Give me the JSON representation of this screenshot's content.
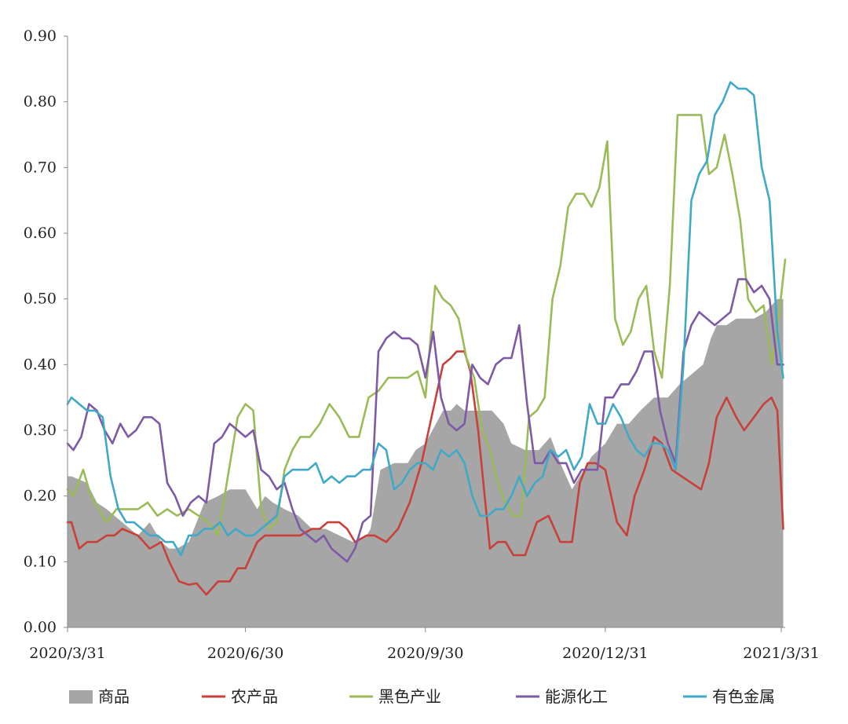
{
  "chart_data": {
    "type": "line",
    "title": "",
    "xlabel": "",
    "ylabel": "",
    "ylim": [
      0,
      0.9
    ],
    "yticks": [
      "0.00",
      "0.10",
      "0.20",
      "0.30",
      "0.40",
      "0.50",
      "0.60",
      "0.70",
      "0.80",
      "0.90"
    ],
    "xlim": [
      "2020/3/31",
      "2021/4/2"
    ],
    "xticks": [
      "2020/3/31",
      "2020/6/30",
      "2020/9/30",
      "2020/12/31",
      "2021/3/31"
    ],
    "grid": false,
    "legend_position": "bottom",
    "series": [
      {
        "name": "商品",
        "kind": "area",
        "color": "#a6a6a6",
        "x": [
          "2020/3/31",
          "2020/4/2",
          "2020/4/10",
          "2020/4/15",
          "2020/4/20",
          "2020/4/28",
          "2020/5/6",
          "2020/5/12",
          "2020/5/18",
          "2020/5/22",
          "2020/5/26",
          "2020/6/1",
          "2020/6/5",
          "2020/6/9",
          "2020/6/16",
          "2020/6/22",
          "2020/6/30",
          "2020/7/6",
          "2020/7/10",
          "2020/7/14",
          "2020/7/20",
          "2020/7/27",
          "2020/8/3",
          "2020/8/10",
          "2020/8/17",
          "2020/8/24",
          "2020/8/31",
          "2020/9/2",
          "2020/9/7",
          "2020/9/14",
          "2020/9/21",
          "2020/9/25",
          "2020/9/30",
          "2020/10/9",
          "2020/10/13",
          "2020/10/16",
          "2020/10/20",
          "2020/10/26",
          "2020/10/30",
          "2020/11/3",
          "2020/11/9",
          "2020/11/13",
          "2020/11/20",
          "2020/11/27",
          "2020/12/3",
          "2020/12/8",
          "2020/12/14",
          "2020/12/18",
          "2020/12/24",
          "2020/12/31",
          "2021/1/6",
          "2021/1/12",
          "2021/1/18",
          "2021/1/25",
          "2021/2/1",
          "2021/2/7",
          "2021/2/19",
          "2021/2/23",
          "2021/2/26",
          "2021/3/3",
          "2021/3/8",
          "2021/3/12",
          "2021/3/17",
          "2021/3/23",
          "2021/3/29",
          "2021/4/1"
        ],
        "values": [
          0.23,
          0.23,
          0.22,
          0.19,
          0.18,
          0.16,
          0.14,
          0.16,
          0.13,
          0.12,
          0.12,
          0.13,
          0.16,
          0.19,
          0.2,
          0.21,
          0.21,
          0.18,
          0.2,
          0.19,
          0.18,
          0.17,
          0.15,
          0.15,
          0.14,
          0.13,
          0.14,
          0.15,
          0.24,
          0.25,
          0.25,
          0.27,
          0.28,
          0.33,
          0.33,
          0.34,
          0.33,
          0.33,
          0.33,
          0.33,
          0.31,
          0.28,
          0.27,
          0.27,
          0.29,
          0.25,
          0.21,
          0.23,
          0.26,
          0.28,
          0.31,
          0.31,
          0.33,
          0.35,
          0.35,
          0.37,
          0.4,
          0.44,
          0.46,
          0.46,
          0.47,
          0.47,
          0.47,
          0.48,
          0.5,
          0.5
        ]
      },
      {
        "name": "农产品",
        "kind": "line",
        "color": "#c9403a",
        "x": [
          "2020/3/31",
          "2020/4/2",
          "2020/4/6",
          "2020/4/10",
          "2020/4/15",
          "2020/4/20",
          "2020/4/24",
          "2020/4/28",
          "2020/5/6",
          "2020/5/12",
          "2020/5/18",
          "2020/5/22",
          "2020/5/27",
          "2020/6/1",
          "2020/6/5",
          "2020/6/10",
          "2020/6/16",
          "2020/6/22",
          "2020/6/26",
          "2020/6/30",
          "2020/7/6",
          "2020/7/10",
          "2020/7/16",
          "2020/7/22",
          "2020/7/28",
          "2020/8/3",
          "2020/8/7",
          "2020/8/11",
          "2020/8/17",
          "2020/8/21",
          "2020/8/25",
          "2020/8/31",
          "2020/9/4",
          "2020/9/10",
          "2020/9/16",
          "2020/9/22",
          "2020/9/28",
          "2020/10/9",
          "2020/10/13",
          "2020/10/16",
          "2020/10/20",
          "2020/10/23",
          "2020/10/27",
          "2020/11/2",
          "2020/11/6",
          "2020/11/10",
          "2020/11/14",
          "2020/11/20",
          "2020/11/26",
          "2020/12/2",
          "2020/12/8",
          "2020/12/14",
          "2020/12/18",
          "2020/12/22",
          "2020/12/26",
          "2020/12/31",
          "2021/1/6",
          "2021/1/11",
          "2021/1/15",
          "2021/1/20",
          "2021/1/25",
          "2021/1/29",
          "2021/2/3",
          "2021/2/8",
          "2021/2/18",
          "2021/2/22",
          "2021/2/26",
          "2021/3/3",
          "2021/3/8",
          "2021/3/12",
          "2021/3/17",
          "2021/3/22",
          "2021/3/26",
          "2021/3/29",
          "2021/4/1"
        ],
        "values": [
          0.16,
          0.16,
          0.12,
          0.13,
          0.13,
          0.14,
          0.14,
          0.15,
          0.14,
          0.12,
          0.13,
          0.1,
          0.07,
          0.065,
          0.067,
          0.05,
          0.07,
          0.07,
          0.09,
          0.09,
          0.13,
          0.14,
          0.14,
          0.14,
          0.14,
          0.15,
          0.15,
          0.16,
          0.16,
          0.15,
          0.13,
          0.14,
          0.14,
          0.13,
          0.15,
          0.19,
          0.25,
          0.4,
          0.41,
          0.42,
          0.42,
          0.39,
          0.3,
          0.12,
          0.13,
          0.13,
          0.11,
          0.11,
          0.16,
          0.17,
          0.13,
          0.13,
          0.22,
          0.25,
          0.25,
          0.24,
          0.16,
          0.14,
          0.2,
          0.24,
          0.29,
          0.28,
          0.24,
          0.23,
          0.21,
          0.25,
          0.32,
          0.35,
          0.32,
          0.3,
          0.32,
          0.34,
          0.35,
          0.33,
          0.15
        ]
      },
      {
        "name": "黑色产业",
        "kind": "line",
        "color": "#9bbb59",
        "x": [
          "2020/3/31",
          "2020/4/3",
          "2020/4/8",
          "2020/4/12",
          "2020/4/16",
          "2020/4/20",
          "2020/4/25",
          "2020/4/30",
          "2020/5/6",
          "2020/5/11",
          "2020/5/16",
          "2020/5/21",
          "2020/5/26",
          "2020/6/1",
          "2020/6/6",
          "2020/6/11",
          "2020/6/16",
          "2020/6/21",
          "2020/6/26",
          "2020/6/30",
          "2020/7/4",
          "2020/7/8",
          "2020/7/12",
          "2020/7/16",
          "2020/7/20",
          "2020/7/24",
          "2020/7/28",
          "2020/8/2",
          "2020/8/7",
          "2020/8/12",
          "2020/8/17",
          "2020/8/22",
          "2020/8/27",
          "2020/9/1",
          "2020/9/6",
          "2020/9/11",
          "2020/9/16",
          "2020/9/21",
          "2020/9/26",
          "2020/9/30",
          "2020/10/5",
          "2020/10/9",
          "2020/10/13",
          "2020/10/17",
          "2020/10/21",
          "2020/10/25",
          "2020/10/29",
          "2020/11/2",
          "2020/11/6",
          "2020/11/10",
          "2020/11/14",
          "2020/11/18",
          "2020/11/22",
          "2020/11/26",
          "2020/11/30",
          "2020/12/4",
          "2020/12/8",
          "2020/12/12",
          "2020/12/16",
          "2020/12/20",
          "2020/12/24",
          "2020/12/28",
          "2021/1/1",
          "2021/1/5",
          "2021/1/9",
          "2021/1/13",
          "2021/1/17",
          "2021/1/21",
          "2021/1/25",
          "2021/1/29",
          "2021/2/2",
          "2021/2/6",
          "2021/2/10",
          "2021/2/14",
          "2021/2/18",
          "2021/2/22",
          "2021/2/26",
          "2021/3/2",
          "2021/3/6",
          "2021/3/10",
          "2021/3/14",
          "2021/3/18",
          "2021/3/22",
          "2021/3/26",
          "2021/3/30",
          "2021/4/2"
        ],
        "values": [
          0.21,
          0.2,
          0.24,
          0.2,
          0.18,
          0.16,
          0.18,
          0.18,
          0.18,
          0.19,
          0.17,
          0.18,
          0.17,
          0.18,
          0.17,
          0.16,
          0.14,
          0.23,
          0.32,
          0.34,
          0.33,
          0.18,
          0.15,
          0.16,
          0.24,
          0.27,
          0.29,
          0.29,
          0.31,
          0.34,
          0.32,
          0.29,
          0.29,
          0.35,
          0.36,
          0.38,
          0.38,
          0.38,
          0.39,
          0.35,
          0.52,
          0.5,
          0.49,
          0.47,
          0.41,
          0.38,
          0.3,
          0.27,
          0.22,
          0.19,
          0.17,
          0.17,
          0.32,
          0.33,
          0.35,
          0.5,
          0.55,
          0.64,
          0.66,
          0.66,
          0.64,
          0.67,
          0.74,
          0.47,
          0.43,
          0.45,
          0.5,
          0.52,
          0.42,
          0.38,
          0.52,
          0.78,
          0.78,
          0.78,
          0.78,
          0.69,
          0.7,
          0.75,
          0.69,
          0.62,
          0.5,
          0.48,
          0.49,
          0.4,
          0.48,
          0.56
        ]
      },
      {
        "name": "能源化工",
        "kind": "line",
        "color": "#7e5aa6",
        "x": [
          "2020/3/31",
          "2020/4/3",
          "2020/4/7",
          "2020/4/11",
          "2020/4/15",
          "2020/4/19",
          "2020/4/23",
          "2020/4/27",
          "2020/5/1",
          "2020/5/5",
          "2020/5/9",
          "2020/5/13",
          "2020/5/17",
          "2020/5/21",
          "2020/5/25",
          "2020/5/29",
          "2020/6/2",
          "2020/6/6",
          "2020/6/10",
          "2020/6/14",
          "2020/6/18",
          "2020/6/22",
          "2020/6/26",
          "2020/6/30",
          "2020/7/4",
          "2020/7/8",
          "2020/7/12",
          "2020/7/16",
          "2020/7/20",
          "2020/7/24",
          "2020/7/28",
          "2020/8/1",
          "2020/8/5",
          "2020/8/9",
          "2020/8/13",
          "2020/8/17",
          "2020/8/21",
          "2020/8/25",
          "2020/8/29",
          "2020/9/2",
          "2020/9/6",
          "2020/9/10",
          "2020/9/14",
          "2020/9/18",
          "2020/9/22",
          "2020/9/26",
          "2020/9/30",
          "2020/10/4",
          "2020/10/8",
          "2020/10/12",
          "2020/10/16",
          "2020/10/20",
          "2020/10/24",
          "2020/10/28",
          "2020/11/1",
          "2020/11/5",
          "2020/11/9",
          "2020/11/13",
          "2020/11/17",
          "2020/11/21",
          "2020/11/25",
          "2020/11/29",
          "2020/12/3",
          "2020/12/7",
          "2020/12/11",
          "2020/12/15",
          "2020/12/19",
          "2020/12/23",
          "2020/12/27",
          "2020/12/31",
          "2021/1/4",
          "2021/1/8",
          "2021/1/12",
          "2021/1/16",
          "2021/1/20",
          "2021/1/24",
          "2021/1/28",
          "2021/2/1",
          "2021/2/5",
          "2021/2/9",
          "2021/2/13",
          "2021/2/17",
          "2021/2/21",
          "2021/2/25",
          "2021/3/1",
          "2021/3/5",
          "2021/3/9",
          "2021/3/13",
          "2021/3/17",
          "2021/3/21",
          "2021/3/25",
          "2021/3/29",
          "2021/4/1"
        ],
        "values": [
          0.28,
          0.27,
          0.29,
          0.34,
          0.33,
          0.3,
          0.28,
          0.31,
          0.29,
          0.3,
          0.32,
          0.32,
          0.31,
          0.22,
          0.2,
          0.17,
          0.19,
          0.2,
          0.19,
          0.28,
          0.29,
          0.31,
          0.3,
          0.29,
          0.3,
          0.24,
          0.23,
          0.21,
          0.22,
          0.18,
          0.15,
          0.14,
          0.13,
          0.14,
          0.12,
          0.11,
          0.1,
          0.12,
          0.16,
          0.17,
          0.42,
          0.44,
          0.45,
          0.44,
          0.44,
          0.43,
          0.38,
          0.45,
          0.35,
          0.31,
          0.3,
          0.31,
          0.4,
          0.38,
          0.37,
          0.4,
          0.41,
          0.41,
          0.46,
          0.34,
          0.25,
          0.25,
          0.27,
          0.25,
          0.25,
          0.22,
          0.24,
          0.24,
          0.24,
          0.35,
          0.35,
          0.37,
          0.37,
          0.39,
          0.42,
          0.42,
          0.33,
          0.28,
          0.25,
          0.42,
          0.46,
          0.48,
          0.47,
          0.46,
          0.47,
          0.48,
          0.53,
          0.53,
          0.51,
          0.52,
          0.5,
          0.4,
          0.4
        ]
      },
      {
        "name": "有色金属",
        "kind": "line",
        "color": "#40a9c8",
        "x": [
          "2020/3/31",
          "2020/4/2",
          "2020/4/6",
          "2020/4/10",
          "2020/4/14",
          "2020/4/18",
          "2020/4/22",
          "2020/4/26",
          "2020/4/30",
          "2020/5/4",
          "2020/5/8",
          "2020/5/12",
          "2020/5/16",
          "2020/5/20",
          "2020/5/24",
          "2020/5/28",
          "2020/6/1",
          "2020/6/5",
          "2020/6/9",
          "2020/6/13",
          "2020/6/17",
          "2020/6/21",
          "2020/6/25",
          "2020/6/30",
          "2020/7/4",
          "2020/7/8",
          "2020/7/12",
          "2020/7/16",
          "2020/7/20",
          "2020/7/24",
          "2020/7/28",
          "2020/8/1",
          "2020/8/5",
          "2020/8/9",
          "2020/8/13",
          "2020/8/17",
          "2020/8/21",
          "2020/8/25",
          "2020/8/29",
          "2020/9/2",
          "2020/9/6",
          "2020/9/10",
          "2020/9/14",
          "2020/9/18",
          "2020/9/22",
          "2020/9/26",
          "2020/9/30",
          "2020/10/4",
          "2020/10/8",
          "2020/10/12",
          "2020/10/16",
          "2020/10/20",
          "2020/10/24",
          "2020/10/28",
          "2020/11/1",
          "2020/11/5",
          "2020/11/9",
          "2020/11/13",
          "2020/11/17",
          "2020/11/21",
          "2020/11/25",
          "2020/11/29",
          "2020/12/3",
          "2020/12/7",
          "2020/12/11",
          "2020/12/15",
          "2020/12/19",
          "2020/12/23",
          "2020/12/27",
          "2020/12/31",
          "2021/1/4",
          "2021/1/8",
          "2021/1/12",
          "2021/1/16",
          "2021/1/20",
          "2021/1/24",
          "2021/1/28",
          "2021/2/1",
          "2021/2/5",
          "2021/2/9",
          "2021/2/13",
          "2021/2/17",
          "2021/2/21",
          "2021/2/25",
          "2021/3/1",
          "2021/3/5",
          "2021/3/9",
          "2021/3/13",
          "2021/3/17",
          "2021/3/21",
          "2021/3/25",
          "2021/3/29",
          "2021/4/1"
        ],
        "values": [
          0.34,
          0.35,
          0.34,
          0.33,
          0.33,
          0.32,
          0.23,
          0.18,
          0.16,
          0.16,
          0.15,
          0.14,
          0.14,
          0.13,
          0.13,
          0.11,
          0.14,
          0.14,
          0.15,
          0.15,
          0.16,
          0.14,
          0.15,
          0.14,
          0.14,
          0.15,
          0.16,
          0.17,
          0.23,
          0.24,
          0.24,
          0.24,
          0.25,
          0.22,
          0.23,
          0.22,
          0.23,
          0.23,
          0.24,
          0.24,
          0.28,
          0.27,
          0.21,
          0.22,
          0.24,
          0.25,
          0.25,
          0.24,
          0.27,
          0.26,
          0.27,
          0.25,
          0.2,
          0.17,
          0.17,
          0.18,
          0.18,
          0.2,
          0.23,
          0.2,
          0.22,
          0.23,
          0.27,
          0.26,
          0.27,
          0.24,
          0.26,
          0.34,
          0.31,
          0.31,
          0.34,
          0.32,
          0.29,
          0.27,
          0.26,
          0.28,
          0.28,
          0.27,
          0.24,
          0.4,
          0.65,
          0.69,
          0.71,
          0.78,
          0.8,
          0.83,
          0.82,
          0.82,
          0.81,
          0.7,
          0.65,
          0.45,
          0.38
        ]
      }
    ]
  }
}
